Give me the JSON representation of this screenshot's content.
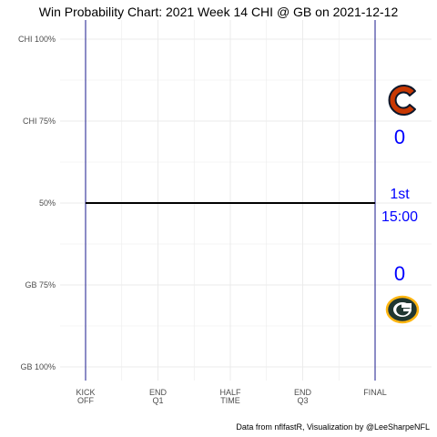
{
  "chart_data": {
    "type": "line",
    "title": "Win Probability Chart: 2021 Week 14 CHI @ GB on 2021-12-12",
    "caption": "Data from nflfastR, Visualization by @LeeSharpeNFL",
    "y_tick_labels": [
      "CHI 100%",
      "CHI 75%",
      "50%",
      "GB 75%",
      "GB 100%"
    ],
    "y_tick_values": [
      0,
      0.25,
      0.5,
      0.75,
      1
    ],
    "x_tick_labels": [
      {
        "line1": "KICK",
        "line2": "OFF"
      },
      {
        "line1": "END",
        "line2": "Q1"
      },
      {
        "line1": "HALF",
        "line2": "TIME"
      },
      {
        "line1": "END",
        "line2": "Q3"
      },
      {
        "line1": "FINAL",
        "line2": ""
      }
    ],
    "x_tick_values": [
      3600,
      2700,
      1800,
      900,
      0
    ],
    "xlim": [
      3600,
      0
    ],
    "ylim": [
      0,
      1
    ],
    "grid": true,
    "series": [
      {
        "x": [
          3600,
          0
        ],
        "y": [
          0.5,
          0.5
        ]
      }
    ],
    "away": {
      "team": "CHI",
      "score": "0",
      "logo_color": "#c83803",
      "logo_color2": "#0b162a"
    },
    "home": {
      "team": "GB",
      "score": "0",
      "logo_color": "#203731",
      "logo_color2": "#ffb612"
    },
    "status": {
      "quarter": "1st",
      "clock": "15:00"
    },
    "colors": {
      "frame": "#1a1a8c",
      "line": "#000000",
      "grid": "#ebebeb",
      "status_text": "#0000ff"
    }
  }
}
